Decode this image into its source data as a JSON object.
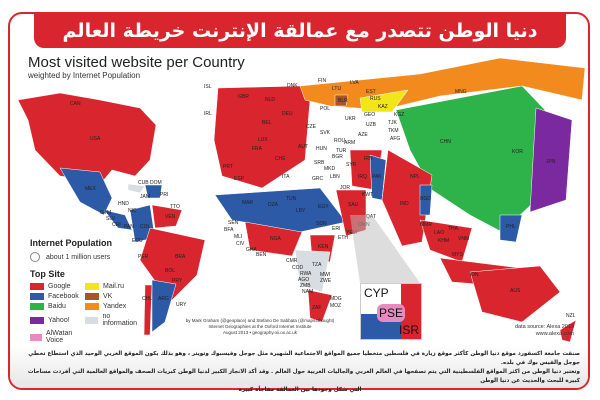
{
  "banner_title": "دنيا الوطن تتصدر مع عمالقة الإنترنت خريطة العالم الإلكترونية",
  "map": {
    "title": "Most visited website per Country",
    "subtitle": "weighted by Internet Population",
    "colors": {
      "google": "#d9262e",
      "facebook": "#2d5aa6",
      "baidu": "#2db34a",
      "yahoo": "#7a2a9e",
      "alwatan": "#e889c0",
      "mailru": "#f2e61a",
      "vk": "#a8552a",
      "yandex": "#f28a1e",
      "noinfo": "#d8dde2"
    },
    "labels": [
      "CAN",
      "USA",
      "MEX",
      "CUB",
      "DOM",
      "PRI",
      "JAM",
      "HND",
      "NIC",
      "GTM",
      "SLV",
      "CRI",
      "PAN",
      "TTO",
      "VEN",
      "COL",
      "ECU",
      "PER",
      "BRA",
      "BOL",
      "PRY",
      "CHL",
      "ARG",
      "URY",
      "ISL",
      "IRL",
      "GBR",
      "NLD",
      "DNK",
      "DEU",
      "BEL",
      "LUX",
      "FRA",
      "CHE",
      "ITA",
      "PRT",
      "ESP",
      "POL",
      "CZE",
      "SVK",
      "AUT",
      "HUN",
      "ROU",
      "BGR",
      "SRB",
      "MKD",
      "GRC",
      "UKR",
      "BLR",
      "LTU",
      "LVA",
      "EST",
      "FIN",
      "RUS",
      "KAZ",
      "KGZ",
      "UZB",
      "TJK",
      "TKM",
      "AFG",
      "GEO",
      "ARM",
      "AZE",
      "TUR",
      "SYR",
      "LBN",
      "IRQ",
      "IRN",
      "JOR",
      "SAU",
      "KWT",
      "QAT",
      "OMN",
      "YEM",
      "EGY",
      "LBY",
      "TUN",
      "DZA",
      "MAR",
      "SEN",
      "BFA",
      "MLI",
      "CIV",
      "GHA",
      "BEN",
      "NGA",
      "SDN",
      "ERI",
      "ETH",
      "KEN",
      "CMR",
      "COD",
      "RWA",
      "AGO",
      "ZMB",
      "NAM",
      "TZA",
      "MWI",
      "ZWE",
      "ZAF",
      "MDG",
      "MOZ",
      "PAK",
      "IND",
      "NPL",
      "BGD",
      "MMR",
      "LAO",
      "KHM",
      "THA",
      "VNM",
      "MYS",
      "IDN",
      "PHL",
      "CHN",
      "MNG",
      "KOR",
      "JPN",
      "AUS",
      "NZL"
    ],
    "inset_labels": [
      "CYP",
      "PSE",
      "ISR"
    ]
  },
  "legend": {
    "population_title": "Internet Population",
    "population_item": "about 1 million users",
    "top_site_title": "Top Site",
    "items": [
      {
        "label": "Google",
        "color": "#d9262e"
      },
      {
        "label": "Mail.ru",
        "color": "#f2e61a"
      },
      {
        "label": "Facebook",
        "color": "#2d5aa6"
      },
      {
        "label": "VK",
        "color": "#a8552a"
      },
      {
        "label": "Baidu",
        "color": "#2db34a"
      },
      {
        "label": "Yandex",
        "color": "#f28a1e"
      },
      {
        "label": "Yahoo!",
        "color": "#7a2a9e"
      },
      {
        "label": "no information",
        "color": "#d8dde2"
      },
      {
        "label": "AlWatan Voice",
        "color": "#e889c0"
      }
    ]
  },
  "credits": {
    "line1": "by Mark Graham (@geoplace) and Stefano De Sabbata (@maps4thought)",
    "line2": "Internet Geographies at the Oxford Internet Institute",
    "line3": "August 2013 • geography.oii.ox.ac.uk"
  },
  "source": {
    "line1": "data source: Alexa 2013",
    "line2": "www.alexa.com"
  },
  "article": {
    "line1": "صنفت جامعة اكسفورد موقع دنيا الوطن كأكثر موقع زيارة في فلسطين متخطيا جميع المواقع الاجتماعية الشهيرة مثل جوجل وفيسبوك وتويتر ، وهو بذلك يكون الموقع العربي الوحيد الذي استطاع تخطي جوجل والفيس بوك في بلده.",
    "line2": "وتعتبر دنيا الوطن من اكثر المواقع الفلسطينية التي يتم تصفحها في العالم العربي والجاليات العربية حول العالم . وقد أكد الانجاز الكبير لدنيا الوطن كبريات الصحف والمواقع العالمية التي أفردت مساحات كبيرة للبحث والحديث عن دنيا الوطن",
    "line3": "التي شكل وجودها بين العمالقة مفاجأة كبيرة"
  }
}
